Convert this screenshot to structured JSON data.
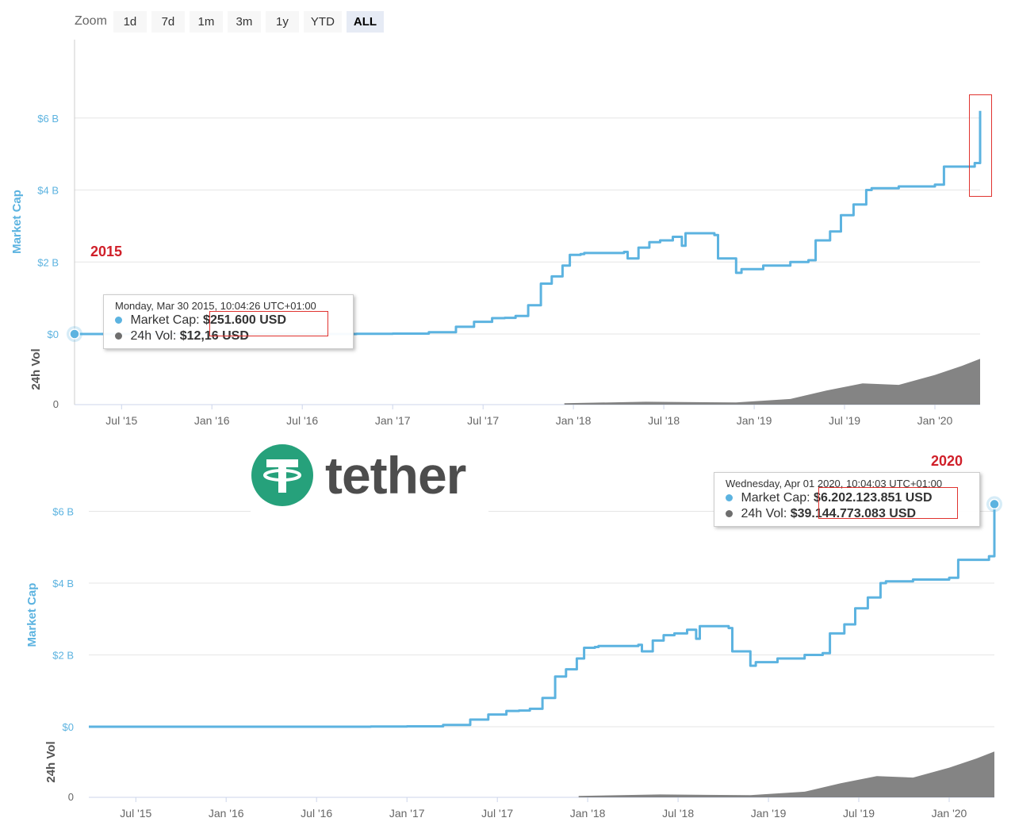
{
  "zoom": {
    "label": "Zoom",
    "buttons": [
      "1d",
      "7d",
      "1m",
      "3m",
      "1y",
      "YTD",
      "ALL"
    ],
    "active": "ALL"
  },
  "logo": {
    "wordmark": "tether"
  },
  "annotations": {
    "top_year": "2015",
    "bottom_year": "2020"
  },
  "tooltips": {
    "top": {
      "date": "Monday, Mar 30 2015, 10:04:26 UTC+01:00",
      "market_cap_label": "Market Cap:",
      "market_cap_value": "$251.600 USD",
      "vol_label": "24h Vol:",
      "vol_value": "$12,16 USD"
    },
    "bottom": {
      "date": "Wednesday, Apr 01 2020, 10:04:03 UTC+01:00",
      "market_cap_label": "Market Cap:",
      "market_cap_value": "$6.202.123.851 USD",
      "vol_label": "24h Vol:",
      "vol_value": "$39.144.773.083 USD"
    }
  },
  "colors": {
    "market_cap": "#5cb3e0",
    "volume": "#6e6e6e",
    "annotation": "#d0202a",
    "logo_green": "#26a17b"
  },
  "chart_data": [
    {
      "type": "line",
      "title": "",
      "ylabel": "Market Cap",
      "y2label": "24h Vol",
      "x_ticks": [
        "Jul '15",
        "Jan '16",
        "Jul '16",
        "Jan '17",
        "Jul '17",
        "Jan '18",
        "Jul '18",
        "Jan '19",
        "Jul '19",
        "Jan '20"
      ],
      "y_ticks": [
        "$0",
        "$2 B",
        "$4 B",
        "$6 B"
      ],
      "y2_ticks": [
        "0"
      ],
      "ylim": [
        0,
        8
      ],
      "xlim": [
        2015.24,
        2020.25
      ],
      "series": [
        {
          "name": "Market Cap",
          "unit": "B USD",
          "x": [
            2015.24,
            2016.8,
            2017.0,
            2017.2,
            2017.35,
            2017.45,
            2017.55,
            2017.62,
            2017.68,
            2017.75,
            2017.82,
            2017.88,
            2017.94,
            2017.98,
            2018.04,
            2018.06,
            2018.2,
            2018.28,
            2018.3,
            2018.36,
            2018.42,
            2018.48,
            2018.55,
            2018.6,
            2018.62,
            2018.72,
            2018.78,
            2018.8,
            2018.9,
            2018.93,
            2019.05,
            2019.2,
            2019.3,
            2019.34,
            2019.42,
            2019.48,
            2019.55,
            2019.62,
            2019.65,
            2019.8,
            2020.0,
            2020.05,
            2020.2,
            2020.22,
            2020.25
          ],
          "y": [
            0.00025,
            0.005,
            0.01,
            0.05,
            0.2,
            0.34,
            0.44,
            0.45,
            0.5,
            0.8,
            1.4,
            1.6,
            1.9,
            2.2,
            2.22,
            2.25,
            2.25,
            2.28,
            2.1,
            2.4,
            2.55,
            2.6,
            2.7,
            2.45,
            2.8,
            2.8,
            2.75,
            2.1,
            1.7,
            1.8,
            1.9,
            2.0,
            2.05,
            2.6,
            2.85,
            3.3,
            3.6,
            4.0,
            4.05,
            4.1,
            4.15,
            4.65,
            4.65,
            4.75,
            6.2
          ]
        },
        {
          "name": "24h Vol",
          "unit": "relative",
          "x": [
            2017.95,
            2018.4,
            2018.9,
            2019.2,
            2019.4,
            2019.6,
            2019.8,
            2020.0,
            2020.15,
            2020.25
          ],
          "y": [
            0.02,
            0.04,
            0.03,
            0.08,
            0.2,
            0.3,
            0.28,
            0.42,
            0.55,
            0.65
          ]
        }
      ]
    },
    {
      "type": "line",
      "title": "",
      "ylabel": "Market Cap",
      "y2label": "24h Vol",
      "x_ticks": [
        "Jul '15",
        "Jan '16",
        "Jul '16",
        "Jan '17",
        "Jul '17",
        "Jan '18",
        "Jul '18",
        "Jan '19",
        "Jul '19",
        "Jan '20"
      ],
      "y_ticks": [
        "$0",
        "$2 B",
        "$4 B",
        "$6 B"
      ],
      "y2_ticks": [
        "0"
      ],
      "ylim": [
        0,
        8
      ],
      "xlim": [
        2015.24,
        2020.25
      ],
      "series": [
        {
          "name": "Market Cap",
          "unit": "B USD",
          "x": [
            2015.24,
            2016.8,
            2017.0,
            2017.2,
            2017.35,
            2017.45,
            2017.55,
            2017.62,
            2017.68,
            2017.75,
            2017.82,
            2017.88,
            2017.94,
            2017.98,
            2018.04,
            2018.06,
            2018.2,
            2018.28,
            2018.3,
            2018.36,
            2018.42,
            2018.48,
            2018.55,
            2018.6,
            2018.62,
            2018.72,
            2018.78,
            2018.8,
            2018.9,
            2018.93,
            2019.05,
            2019.2,
            2019.3,
            2019.34,
            2019.42,
            2019.48,
            2019.55,
            2019.62,
            2019.65,
            2019.8,
            2020.0,
            2020.05,
            2020.2,
            2020.22,
            2020.25
          ],
          "y": [
            0.00025,
            0.005,
            0.01,
            0.05,
            0.2,
            0.34,
            0.44,
            0.45,
            0.5,
            0.8,
            1.4,
            1.6,
            1.9,
            2.2,
            2.22,
            2.25,
            2.25,
            2.28,
            2.1,
            2.4,
            2.55,
            2.6,
            2.7,
            2.45,
            2.8,
            2.8,
            2.75,
            2.1,
            1.7,
            1.8,
            1.9,
            2.0,
            2.05,
            2.6,
            2.85,
            3.3,
            3.6,
            4.0,
            4.05,
            4.1,
            4.15,
            4.65,
            4.65,
            4.75,
            6.2
          ]
        },
        {
          "name": "24h Vol",
          "unit": "relative",
          "x": [
            2017.95,
            2018.4,
            2018.9,
            2019.2,
            2019.4,
            2019.6,
            2019.8,
            2020.0,
            2020.15,
            2020.25
          ],
          "y": [
            0.02,
            0.04,
            0.03,
            0.08,
            0.2,
            0.3,
            0.28,
            0.42,
            0.55,
            0.65
          ]
        }
      ]
    }
  ]
}
